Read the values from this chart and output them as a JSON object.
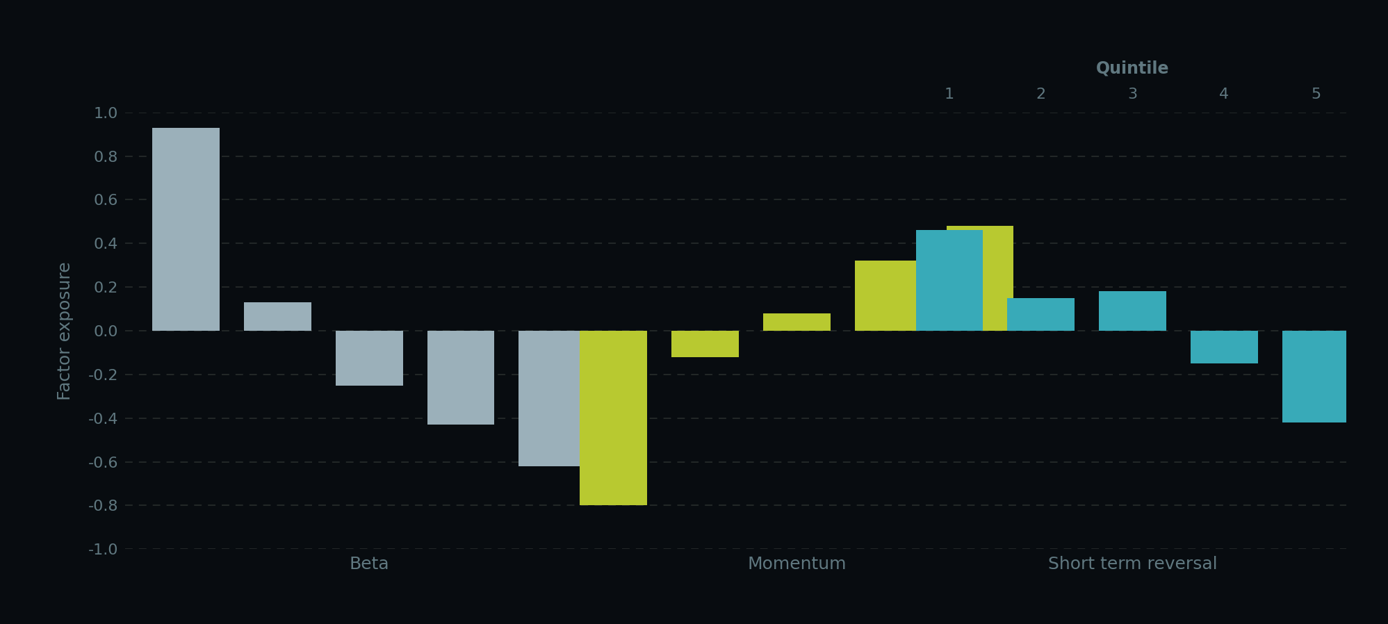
{
  "background_color": "#080c10",
  "text_color": "#607880",
  "grid_color": "#252a2a",
  "ylabel": "Factor exposure",
  "ylim": [
    -1.0,
    1.0
  ],
  "yticks": [
    -1.0,
    -0.8,
    -0.6,
    -0.4,
    -0.2,
    0.0,
    0.2,
    0.4,
    0.6,
    0.8,
    1.0
  ],
  "quintile_label": "Quintile",
  "quintile_numbers": [
    "1",
    "2",
    "3",
    "4",
    "5"
  ],
  "groups": [
    {
      "name": "Beta",
      "color": "#9bb0ba",
      "values": [
        0.93,
        0.13,
        -0.25,
        -0.43,
        -0.62
      ]
    },
    {
      "name": "Momentum",
      "color": "#b8c930",
      "values": [
        -0.8,
        -0.12,
        0.08,
        0.32,
        0.48
      ]
    },
    {
      "name": "Short term reversal",
      "color": "#38aab8",
      "values": [
        0.46,
        0.15,
        0.18,
        -0.15,
        -0.42
      ]
    }
  ],
  "bar_width": 0.055,
  "bar_spacing": 0.075,
  "group_centers": [
    0.25,
    0.6,
    0.875
  ],
  "xlim": [
    0.05,
    1.05
  ],
  "figsize": [
    19.97,
    8.98
  ],
  "dpi": 100,
  "ylabel_fontsize": 18,
  "xlabel_fontsize": 18,
  "ytick_fontsize": 16,
  "quintile_fontsize": 17,
  "quintile_num_fontsize": 16
}
